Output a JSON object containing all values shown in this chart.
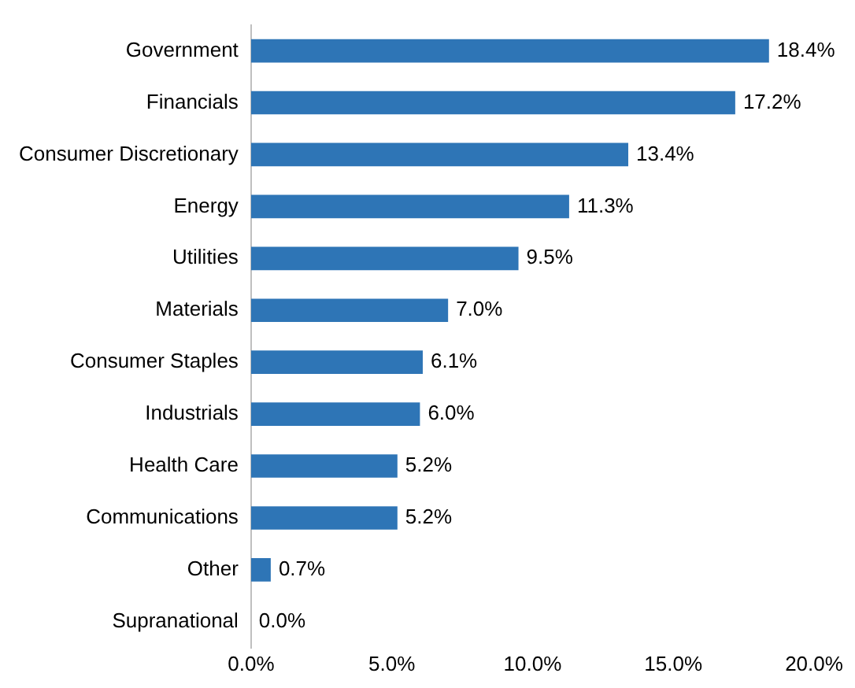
{
  "chart_data": {
    "type": "bar",
    "orientation": "horizontal",
    "categories": [
      "Government",
      "Financials",
      "Consumer Discretionary",
      "Energy",
      "Utilities",
      "Materials",
      "Consumer Staples",
      "Industrials",
      "Health Care",
      "Communications",
      "Other",
      "Supranational"
    ],
    "values": [
      18.4,
      17.2,
      13.4,
      11.3,
      9.5,
      7.0,
      6.1,
      6.0,
      5.2,
      5.2,
      0.7,
      0.0
    ],
    "value_labels": [
      "18.4%",
      "17.2%",
      "13.4%",
      "11.3%",
      "9.5%",
      "7.0%",
      "6.1%",
      "6.0%",
      "5.2%",
      "5.2%",
      "0.7%",
      "0.0%"
    ],
    "color": "#2e75b6",
    "xlim": [
      0,
      20
    ],
    "xticks": [
      {
        "value": 0,
        "label": "0.0%"
      },
      {
        "value": 5,
        "label": "5.0%"
      },
      {
        "value": 10,
        "label": "10.0%"
      },
      {
        "value": 15,
        "label": "15.0%"
      },
      {
        "value": 20,
        "label": "20.0%"
      }
    ],
    "grid": false,
    "legend": false
  }
}
